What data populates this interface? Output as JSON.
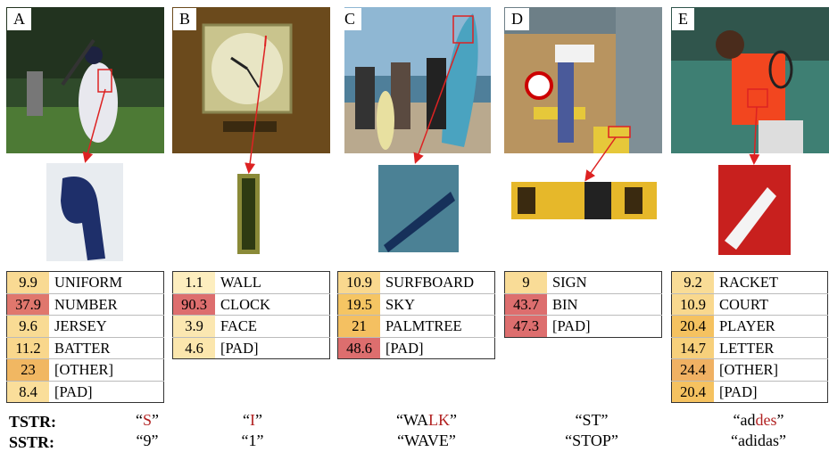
{
  "panels": [
    {
      "letter": "A",
      "rows": [
        [
          9.9,
          "UNIFORM"
        ],
        [
          37.9,
          "NUMBER"
        ],
        [
          9.6,
          "JERSEY"
        ],
        [
          11.2,
          "BATTER"
        ],
        [
          23,
          "[OTHER]"
        ],
        [
          8.4,
          "[PAD]"
        ]
      ],
      "tstr": [
        {
          "text": "“"
        },
        {
          "text": "S",
          "color": "#b22222"
        },
        {
          "text": "”"
        }
      ],
      "sstr": "“9”"
    },
    {
      "letter": "B",
      "rows": [
        [
          1.1,
          "WALL"
        ],
        [
          90.3,
          "CLOCK"
        ],
        [
          3.9,
          "FACE"
        ],
        [
          4.6,
          "[PAD]"
        ]
      ],
      "tstr": [
        {
          "text": "“"
        },
        {
          "text": "I",
          "color": "#b22222"
        },
        {
          "text": "”"
        }
      ],
      "sstr": "“1”"
    },
    {
      "letter": "C",
      "rows": [
        [
          10.9,
          "SURFBOARD"
        ],
        [
          19.5,
          "SKY"
        ],
        [
          21,
          "PALMTREE"
        ],
        [
          48.6,
          "[PAD]"
        ]
      ],
      "tstr": [
        {
          "text": "“WA"
        },
        {
          "text": "LK",
          "color": "#b22222"
        },
        {
          "text": "”"
        }
      ],
      "sstr": "“WAVE”"
    },
    {
      "letter": "D",
      "rows": [
        [
          9,
          "SIGN"
        ],
        [
          43.7,
          "BIN"
        ],
        [
          47.3,
          "[PAD]"
        ]
      ],
      "tstr": [
        {
          "text": "“ST”"
        }
      ],
      "sstr": "“STOP”"
    },
    {
      "letter": "E",
      "rows": [
        [
          9.2,
          "RACKET"
        ],
        [
          10.9,
          "COURT"
        ],
        [
          20.4,
          "PLAYER"
        ],
        [
          14.7,
          "LETTER"
        ],
        [
          24.4,
          "[OTHER]"
        ],
        [
          20.4,
          "[PAD]"
        ]
      ],
      "tstr": [
        {
          "text": "“ad"
        },
        {
          "text": "des",
          "color": "#b22222"
        },
        {
          "text": "”"
        }
      ],
      "sstr": "“adidas”"
    }
  ],
  "tstr_label": "TSTR:",
  "sstr_label": "SSTR:"
}
